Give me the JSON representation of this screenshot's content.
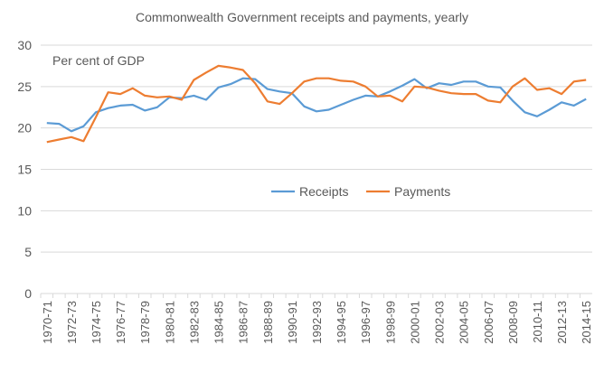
{
  "chart_data": {
    "type": "line",
    "title": "Commonwealth Government receipts and payments, yearly",
    "ylabel": "Per cent of GDP",
    "xlabel": "",
    "ylim": [
      0,
      30
    ],
    "yticks": [
      0,
      5,
      10,
      15,
      20,
      25,
      30
    ],
    "grid": true,
    "legend_position": "center-right",
    "x": [
      "1970-71",
      "1971-72",
      "1972-73",
      "1973-74",
      "1974-75",
      "1975-76",
      "1976-77",
      "1977-78",
      "1978-79",
      "1979-80",
      "1980-81",
      "1981-82",
      "1982-83",
      "1983-84",
      "1984-85",
      "1985-86",
      "1986-87",
      "1987-88",
      "1988-89",
      "1989-90",
      "1990-91",
      "1991-92",
      "1992-93",
      "1993-94",
      "1994-95",
      "1995-96",
      "1996-97",
      "1997-98",
      "1998-99",
      "1999-00",
      "2000-01",
      "2001-02",
      "2002-03",
      "2003-04",
      "2004-05",
      "2005-06",
      "2006-07",
      "2007-08",
      "2008-09",
      "2009-10",
      "2010-11",
      "2011-12",
      "2012-13",
      "2013-14",
      "2014-15"
    ],
    "series": [
      {
        "name": "Receipts",
        "color": "#5B9BD5",
        "values": [
          20.6,
          20.5,
          19.6,
          20.2,
          21.9,
          22.4,
          22.7,
          22.8,
          22.1,
          22.5,
          23.7,
          23.6,
          23.9,
          23.4,
          24.9,
          25.3,
          26.0,
          25.9,
          24.7,
          24.4,
          24.2,
          22.6,
          22.0,
          22.2,
          22.8,
          23.4,
          23.9,
          23.8,
          24.4,
          25.1,
          25.9,
          24.8,
          25.4,
          25.2,
          25.6,
          25.6,
          25.0,
          24.9,
          23.3,
          21.9,
          21.4,
          22.2,
          23.1,
          22.7,
          23.5
        ]
      },
      {
        "name": "Payments",
        "color": "#ED7D31",
        "values": [
          18.3,
          18.6,
          18.9,
          18.4,
          21.3,
          24.3,
          24.1,
          24.8,
          23.9,
          23.7,
          23.8,
          23.4,
          25.8,
          26.7,
          27.5,
          27.3,
          27.0,
          25.4,
          23.2,
          22.9,
          24.2,
          25.6,
          26.0,
          26.0,
          25.7,
          25.6,
          25.0,
          23.8,
          23.9,
          23.2,
          25.0,
          24.9,
          24.5,
          24.2,
          24.1,
          24.1,
          23.3,
          23.1,
          25.0,
          26.0,
          24.6,
          24.8,
          24.1,
          25.6,
          25.8
        ]
      }
    ]
  }
}
